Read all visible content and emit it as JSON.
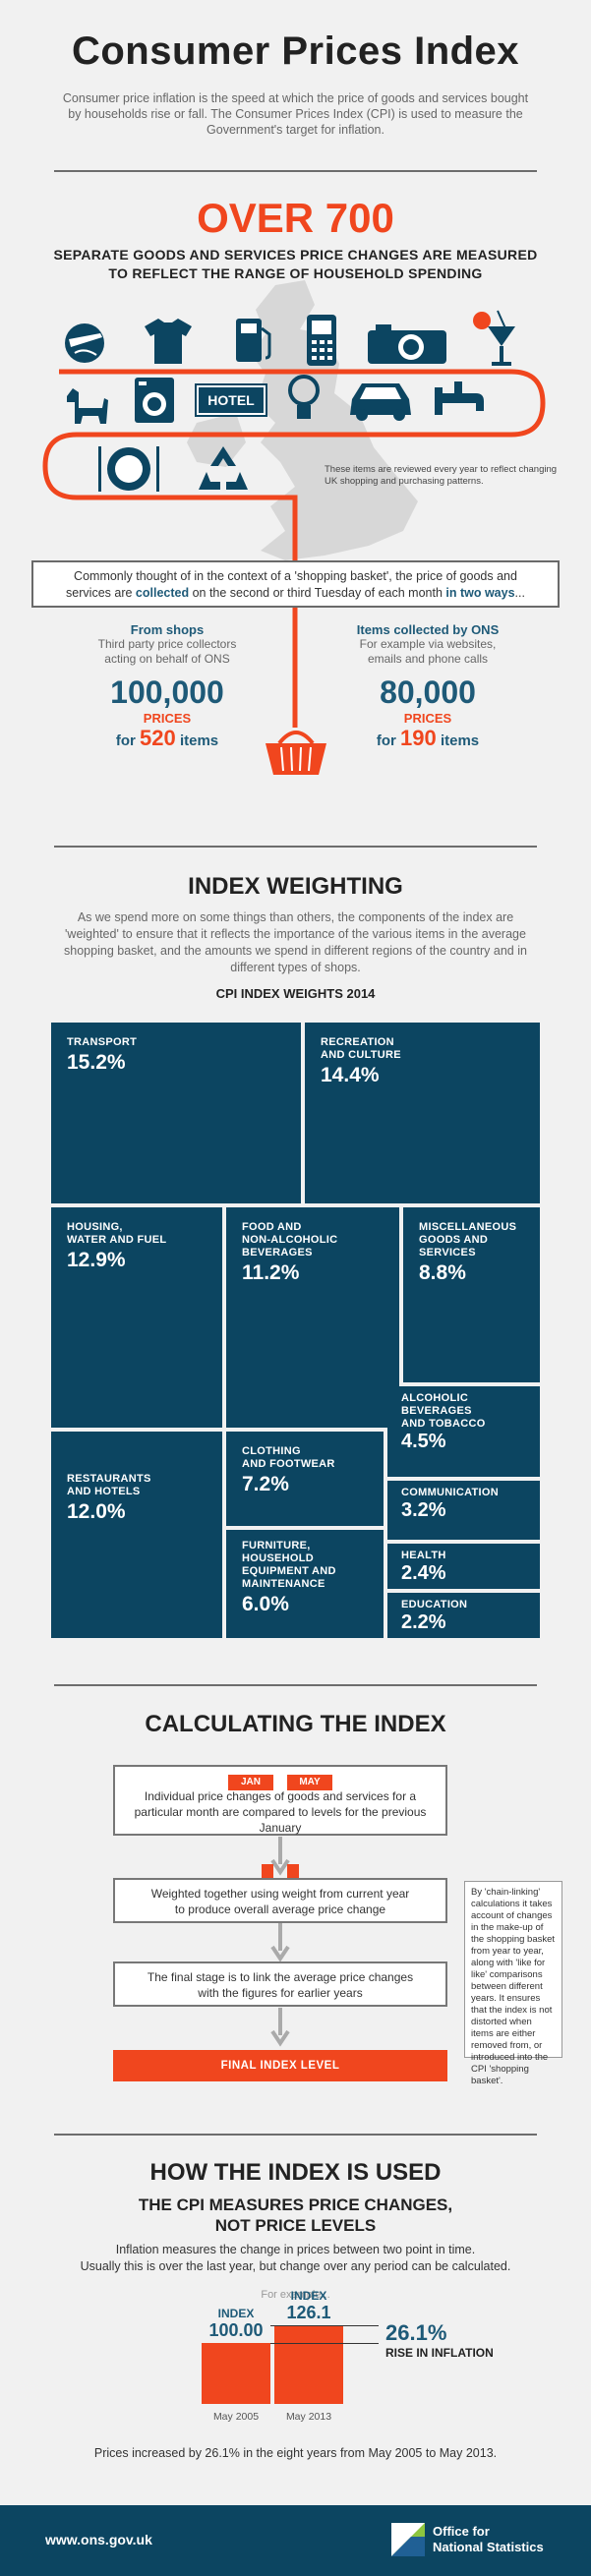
{
  "header": {
    "title": "Consumer Prices Index",
    "intro": "Consumer price inflation is the speed at which the price of goods and services bought by households rise or fall. The Consumer Prices Index (CPI) is used to measure the Government's target for inflation."
  },
  "basket": {
    "headline": "OVER 700",
    "subline_1": "SEPARATE GOODS AND SERVICES PRICE CHANGES ARE MEASURED",
    "subline_2": "TO REFLECT THE RANGE OF HOUSEHOLD SPENDING",
    "hotel_sign": "HOTEL",
    "review_note": "These items are reviewed every year to reflect changing UK shopping and purchasing patterns.",
    "collection_text_1": "Commonly thought of in the context of a 'shopping basket', the price of goods and",
    "collection_text_2a": "services are ",
    "collection_text_2b": "collected",
    "collection_text_2c": " on the second or third Tuesday of each month ",
    "collection_text_2d": "in two ways",
    "collection_text_2e": "...",
    "shops": {
      "heading": "From shops",
      "sub_1": "Third party price collectors",
      "sub_2": "acting on behalf of ONS",
      "number": "100,000",
      "prices_label": "PRICES",
      "for_label": "for",
      "item_count": "520",
      "items_label": "items"
    },
    "ons": {
      "heading": "Items collected by ONS",
      "sub_1": "For example via websites,",
      "sub_2": "emails and phone calls",
      "number": "80,000",
      "prices_label": "PRICES",
      "for_label": "for",
      "item_count": "190",
      "items_label": "items"
    }
  },
  "weighting": {
    "title": "INDEX WEIGHTING",
    "text": "As we spend more on some things than others, the components of the index are 'weighted' to ensure that it reflects the importance of the various items in the average shopping basket, and the amounts we spend in different regions of the country and in different types of shops.",
    "chart_title": "CPI INDEX WEIGHTS 2014",
    "chart_data": {
      "type": "treemap",
      "title": "CPI INDEX WEIGHTS 2014",
      "categories": [
        "Transport",
        "Recreation and culture",
        "Housing, water and fuel",
        "Food and non-alcoholic beverages",
        "Miscellaneous goods and services",
        "Restaurants and hotels",
        "Clothing and footwear",
        "Furniture, household equipment and maintenance",
        "Alcoholic beverages and tobacco",
        "Communication",
        "Health",
        "Education"
      ],
      "values": [
        15.2,
        14.4,
        12.9,
        11.2,
        8.8,
        12.0,
        7.2,
        6.0,
        4.5,
        3.2,
        2.4,
        2.2
      ],
      "unit": "%"
    },
    "cells": {
      "transport": {
        "l1": "TRANSPORT",
        "v": "15.2%"
      },
      "recreation": {
        "l1": "RECREATION",
        "l2": "AND CULTURE",
        "v": "14.4%"
      },
      "housing": {
        "l1": "HOUSING,",
        "l2": "WATER AND FUEL",
        "v": "12.9%"
      },
      "food": {
        "l1": "FOOD AND",
        "l2": "NON-ALCOHOLIC",
        "l3": "BEVERAGES",
        "v": "11.2%"
      },
      "misc": {
        "l1": "MISCELLANEOUS",
        "l2": "GOODS AND",
        "l3": "SERVICES",
        "v": "8.8%"
      },
      "restaurants": {
        "l1": "RESTAURANTS",
        "l2": "AND HOTELS",
        "v": "12.0%"
      },
      "clothing": {
        "l1": "CLOTHING",
        "l2": "AND FOOTWEAR",
        "v": "7.2%"
      },
      "furniture": {
        "l1": "FURNITURE,",
        "l2": "HOUSEHOLD",
        "l3": "EQUIPMENT  AND",
        "l4": "MAINTENANCE",
        "v": "6.0%"
      },
      "alcohol": {
        "l1": "ALCOHOLIC",
        "l2": "BEVERAGES",
        "l3": "AND TOBACCO",
        "v": "4.5%"
      },
      "communication": {
        "l1": "COMMUNICATION",
        "v": "3.2%"
      },
      "health": {
        "l1": "HEALTH",
        "v": "2.4%"
      },
      "education": {
        "l1": "EDUCATION",
        "v": "2.2%"
      }
    }
  },
  "calculating": {
    "title": "CALCULATING THE INDEX",
    "tag_jan": "JAN",
    "tag_may": "MAY",
    "step1_1": "Individual price changes of goods and services for a",
    "step1_2": "particular month are compared to levels for the previous",
    "step1_3": "January",
    "step2_1": "Weighted together using weight from current year",
    "step2_2": "to produce overall average price change",
    "step3_1": "The final stage is to link the average price changes",
    "step3_2": "with the figures for earlier years",
    "final": "FINAL INDEX LEVEL",
    "side_note": "By 'chain-linking' calculations it takes account of changes in the make-up of the shopping basket from year to year, along with 'like for like' comparisons between different years.  It ensures that the index is not distorted when items are either removed from, or introduced into the CPI 'shopping basket'."
  },
  "used": {
    "title": "HOW THE INDEX IS USED",
    "sub_1": "THE CPI MEASURES PRICE CHANGES,",
    "sub_2": "NOT PRICE LEVELS",
    "text_1": "Inflation measures the change in prices between two point in time.",
    "text_2": "Usually this is over the last year, but change over any period can be calculated.",
    "example": "For example...",
    "index_label": "INDEX",
    "bar1_value": "100.00",
    "bar2_value": "126.1",
    "rise_pct": "26.1%",
    "rise_label": "RISE IN INFLATION",
    "bar1_date": "May 2005",
    "bar2_date": "May 2013",
    "conclusion": "Prices increased by 26.1% in the eight years from May 2005 to May 2013."
  },
  "footer": {
    "url": "www.ons.gov.uk",
    "org_1": "Office for",
    "org_2": "National Statistics"
  },
  "colors": {
    "accent": "#f0461e",
    "navy": "#0c4561",
    "ink": "#1e5a78"
  }
}
